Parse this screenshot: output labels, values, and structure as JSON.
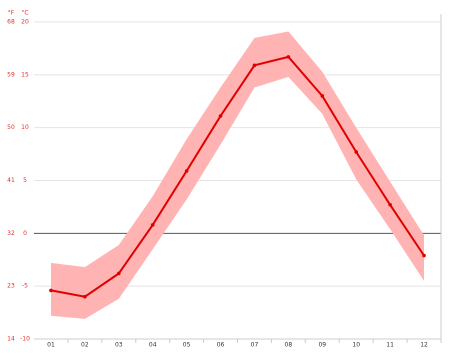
{
  "chart_data": {
    "type": "line",
    "y_unit": "°C",
    "y2_unit": "°F",
    "categories": [
      "01",
      "02",
      "03",
      "04",
      "05",
      "06",
      "07",
      "08",
      "09",
      "10",
      "11",
      "12"
    ],
    "values": [
      -5.4,
      -6.0,
      -3.8,
      0.8,
      5.9,
      11.1,
      15.9,
      16.7,
      13.0,
      7.7,
      2.7,
      -2.1
    ],
    "low": [
      -7.8,
      -8.1,
      -6.2,
      -1.5,
      3.2,
      8.4,
      13.8,
      14.8,
      11.3,
      5.1,
      0.4,
      -4.5
    ],
    "high": [
      -2.8,
      -3.2,
      -1.1,
      3.5,
      8.9,
      13.8,
      18.5,
      19.1,
      15.3,
      10.0,
      4.9,
      -0.2
    ],
    "color": "#e00000",
    "band_color": "#ffb3b3",
    "ylim": [
      -10,
      20
    ],
    "yticks": [
      -10,
      -5,
      0,
      5,
      10,
      15,
      20
    ],
    "y2lim": [
      14,
      68
    ],
    "y2ticks": [
      14,
      23,
      32,
      41,
      50,
      59,
      68
    ],
    "grid": true
  }
}
